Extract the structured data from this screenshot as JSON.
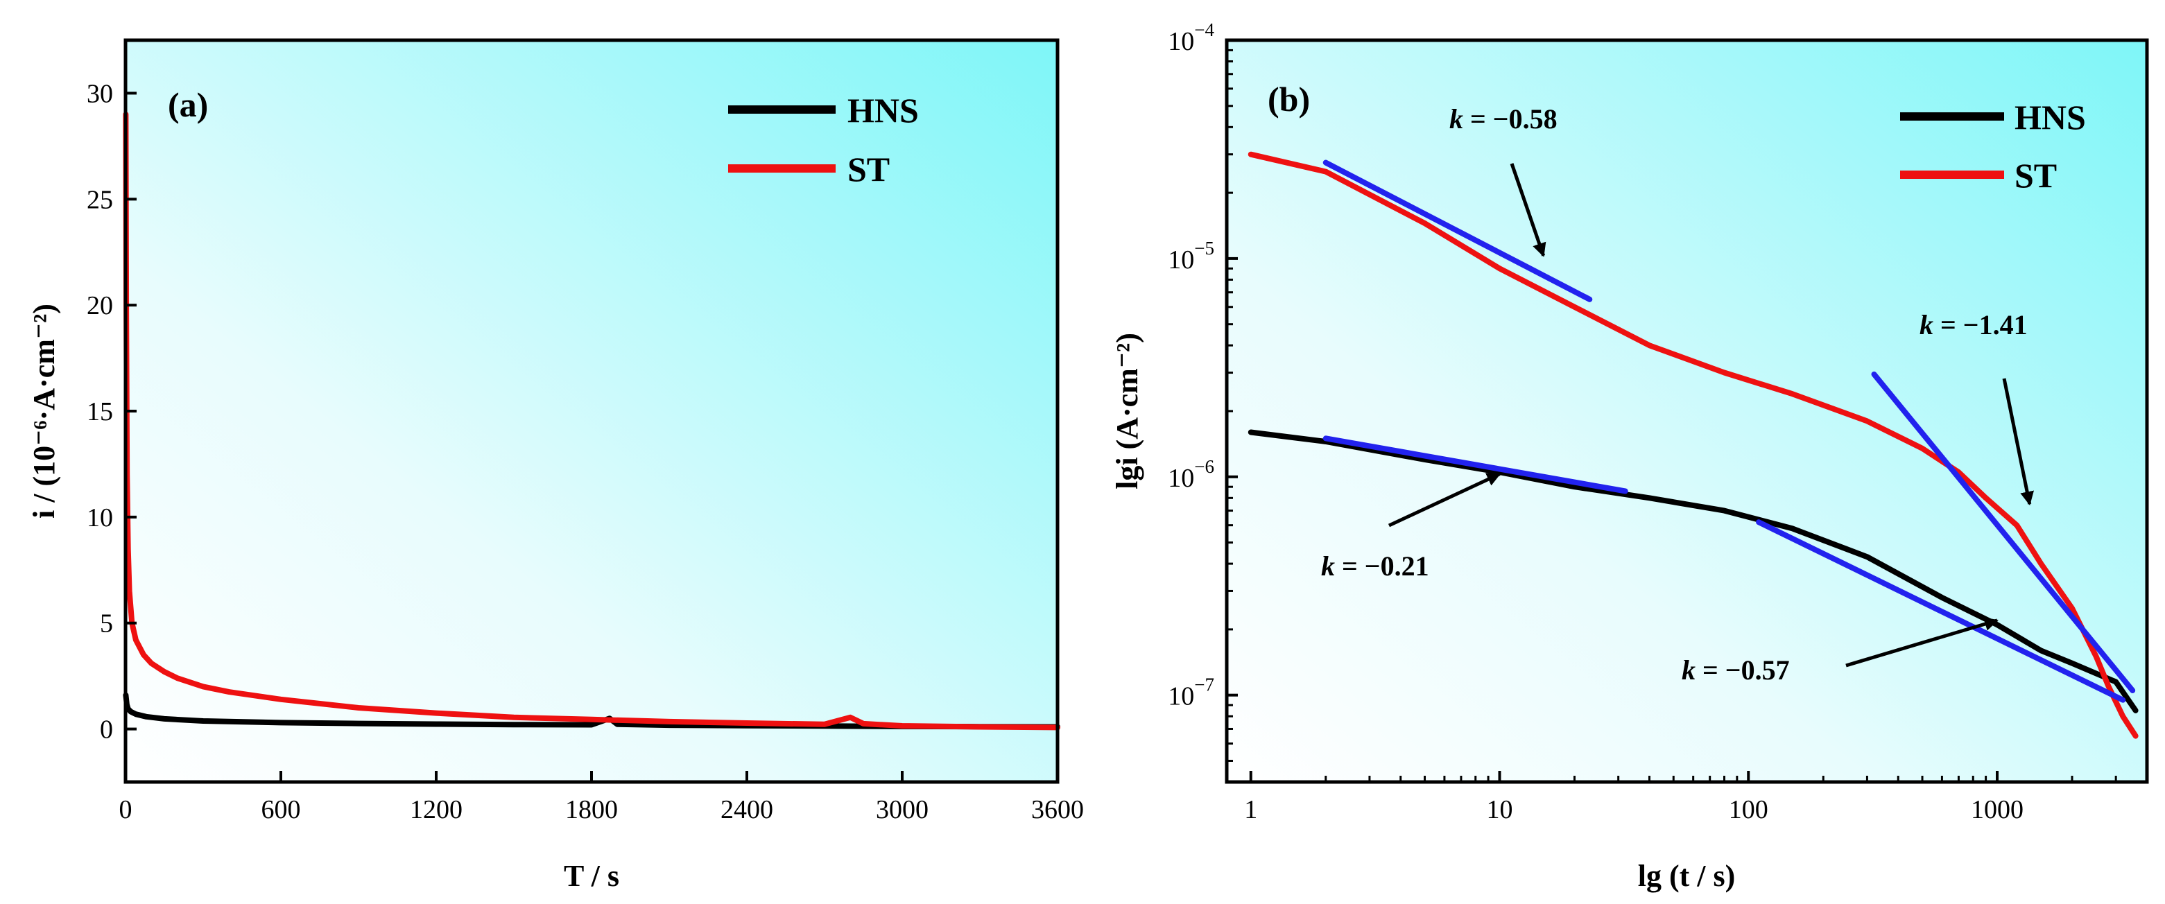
{
  "colors": {
    "hns": "#000000",
    "st": "#ee1111",
    "fit": "#2222ee",
    "bg_light": "#ffffff",
    "bg_cyan": "#7ef6f8"
  },
  "chart_data": [
    {
      "type": "line",
      "panel_label": "(a)",
      "xlabel": "T / s",
      "ylabel": "i / (10⁻⁶·A·cm⁻²)",
      "xlim": [
        0,
        3600
      ],
      "ylim": [
        -2.5,
        32.5
      ],
      "xticks": [
        0,
        600,
        1200,
        1800,
        2400,
        3000,
        3600
      ],
      "yticks": [
        0,
        5,
        10,
        15,
        20,
        25,
        30
      ],
      "legend": {
        "position": "top-right",
        "entries": [
          "HNS",
          "ST"
        ]
      },
      "series": [
        {
          "name": "HNS",
          "x": [
            1,
            5,
            10,
            20,
            40,
            80,
            150,
            300,
            600,
            900,
            1200,
            1500,
            1800,
            1870,
            1900,
            2100,
            2400,
            2700,
            3000,
            3300,
            3600
          ],
          "y": [
            1.6,
            1.15,
            0.95,
            0.82,
            0.7,
            0.58,
            0.48,
            0.38,
            0.3,
            0.26,
            0.23,
            0.21,
            0.2,
            0.5,
            0.22,
            0.18,
            0.16,
            0.14,
            0.12,
            0.11,
            0.1
          ]
        },
        {
          "name": "ST",
          "x": [
            1,
            3,
            6,
            10,
            15,
            25,
            40,
            70,
            100,
            150,
            200,
            300,
            400,
            600,
            900,
            1200,
            1500,
            1800,
            2100,
            2400,
            2700,
            2800,
            2850,
            3000,
            3300,
            3600
          ],
          "y": [
            29,
            20,
            12,
            8.5,
            6.5,
            5,
            4.2,
            3.5,
            3.1,
            2.7,
            2.4,
            2.0,
            1.75,
            1.4,
            1.0,
            0.75,
            0.55,
            0.45,
            0.35,
            0.28,
            0.22,
            0.55,
            0.25,
            0.15,
            0.1,
            0.07
          ]
        }
      ]
    },
    {
      "type": "line",
      "panel_label": "(b)",
      "xscale": "log",
      "yscale": "log",
      "xlabel": "lg (t / s)",
      "ylabel": "lgi (A·cm⁻²)",
      "xlim": [
        0.8,
        4000
      ],
      "ylim": [
        4e-08,
        0.0001
      ],
      "xticks": [
        1,
        10,
        100,
        1000
      ],
      "xtick_labels": [
        "1",
        "10",
        "100",
        "1000"
      ],
      "yticks": [
        1e-07,
        1e-06,
        1e-05,
        0.0001
      ],
      "ytick_labels": [
        {
          "base": "10",
          "exp": "−7"
        },
        {
          "base": "10",
          "exp": "−6"
        },
        {
          "base": "10",
          "exp": "−5"
        },
        {
          "base": "10",
          "exp": "−4"
        }
      ],
      "legend": {
        "position": "top-right",
        "entries": [
          "HNS",
          "ST"
        ]
      },
      "series": [
        {
          "name": "HNS",
          "x": [
            1,
            2,
            5,
            10,
            20,
            40,
            80,
            150,
            300,
            600,
            1000,
            1500,
            2000,
            3000,
            3600
          ],
          "y": [
            1.6e-06,
            1.45e-06,
            1.2e-06,
            1.05e-06,
            9e-07,
            8e-07,
            7e-07,
            5.8e-07,
            4.3e-07,
            2.8e-07,
            2.1e-07,
            1.6e-07,
            1.4e-07,
            1.15e-07,
            8.5e-08
          ]
        },
        {
          "name": "ST",
          "x": [
            1,
            2,
            5,
            10,
            20,
            40,
            80,
            150,
            300,
            500,
            700,
            900,
            1200,
            1500,
            2000,
            2500,
            2800,
            3200,
            3600
          ],
          "y": [
            3e-05,
            2.5e-05,
            1.45e-05,
            9e-06,
            6e-06,
            4e-06,
            3e-06,
            2.4e-06,
            1.8e-06,
            1.35e-06,
            1.05e-06,
            8e-07,
            6e-07,
            4e-07,
            2.5e-07,
            1.5e-07,
            1.1e-07,
            8e-08,
            6.5e-08
          ]
        }
      ],
      "fits": [
        {
          "label": "k = −0.58",
          "slope": -0.58,
          "x": [
            2,
            23
          ],
          "y": [
            2.75e-05,
            6.5e-06
          ]
        },
        {
          "label": "k = −1.41",
          "slope": -1.41,
          "x": [
            320,
            3500
          ],
          "y": [
            2.95e-06,
            1.05e-07
          ]
        },
        {
          "label": "k = −0.21",
          "slope": -0.21,
          "x": [
            2,
            32
          ],
          "y": [
            1.5e-06,
            8.6e-07
          ]
        },
        {
          "label": "k = −0.57",
          "slope": -0.57,
          "x": [
            110,
            3200
          ],
          "y": [
            6.2e-07,
            9.5e-08
          ]
        }
      ],
      "annotations": [
        {
          "text": "k = −0.58",
          "arrow_to": [
            15,
            1.03e-05
          ]
        },
        {
          "text": "k = −1.41",
          "arrow_to": [
            1350,
            7.5e-07
          ]
        },
        {
          "text": "k = −0.21",
          "arrow_to": [
            10,
            1.03e-06
          ]
        },
        {
          "text": "k = −0.57",
          "arrow_to": [
            1000,
            2.2e-07
          ]
        }
      ]
    }
  ]
}
